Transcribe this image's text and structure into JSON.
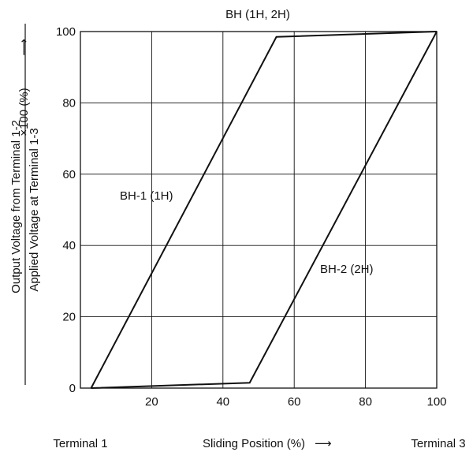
{
  "chart_data": {
    "type": "line",
    "title": "BH (1H, 2H)",
    "xlabel": "Sliding Position (%)",
    "xlabel_arrow": "⟶",
    "ylabel_numerator": "Output Voltage from Terminal 1-2",
    "ylabel_denominator": "Applied Voltage at Terminal 1-3",
    "ylabel_suffix": "×100 (%)",
    "ylabel_arrow": "⟶",
    "x_start_label": "Terminal 1",
    "x_end_label": "Terminal 3",
    "xlim": [
      0,
      100
    ],
    "ylim": [
      0,
      100
    ],
    "xticks": [
      20,
      40,
      60,
      80,
      100
    ],
    "yticks": [
      0,
      20,
      40,
      60,
      80,
      100
    ],
    "grid": true,
    "series": [
      {
        "name": "BH-1 (1H)",
        "points": [
          [
            3,
            0
          ],
          [
            55,
            98.5
          ],
          [
            100,
            100
          ]
        ]
      },
      {
        "name": "BH-2 (2H)",
        "points": [
          [
            3,
            0
          ],
          [
            47.5,
            1.5
          ],
          [
            100,
            100
          ]
        ]
      }
    ]
  }
}
